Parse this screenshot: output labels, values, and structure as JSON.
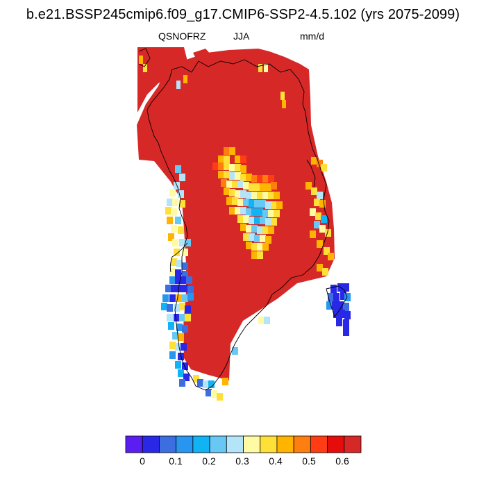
{
  "title": "b.e21.BSSP245cmip6.f09_g17.CMIP6-SSP2-4.5.102 (yrs 2075-2099)",
  "subtitle": {
    "variable": "QSNOFRZ",
    "season": "JJA",
    "units": "mm/d"
  },
  "colorbar": {
    "colors": [
      "#5a1ef0",
      "#2828e6",
      "#3c6ee0",
      "#2896f0",
      "#10b4f4",
      "#68c8f4",
      "#b4e4f8",
      "#fffaa4",
      "#ffe038",
      "#ffb400",
      "#ff7e10",
      "#ff3c14",
      "#e60c0c",
      "#d72828"
    ],
    "tick_labels": [
      "0",
      "0.1",
      "0.2",
      "0.3",
      "0.4",
      "0.5",
      "0.6"
    ]
  },
  "map_colors": {
    "ice": "#d72828",
    "coast": "#000000"
  }
}
